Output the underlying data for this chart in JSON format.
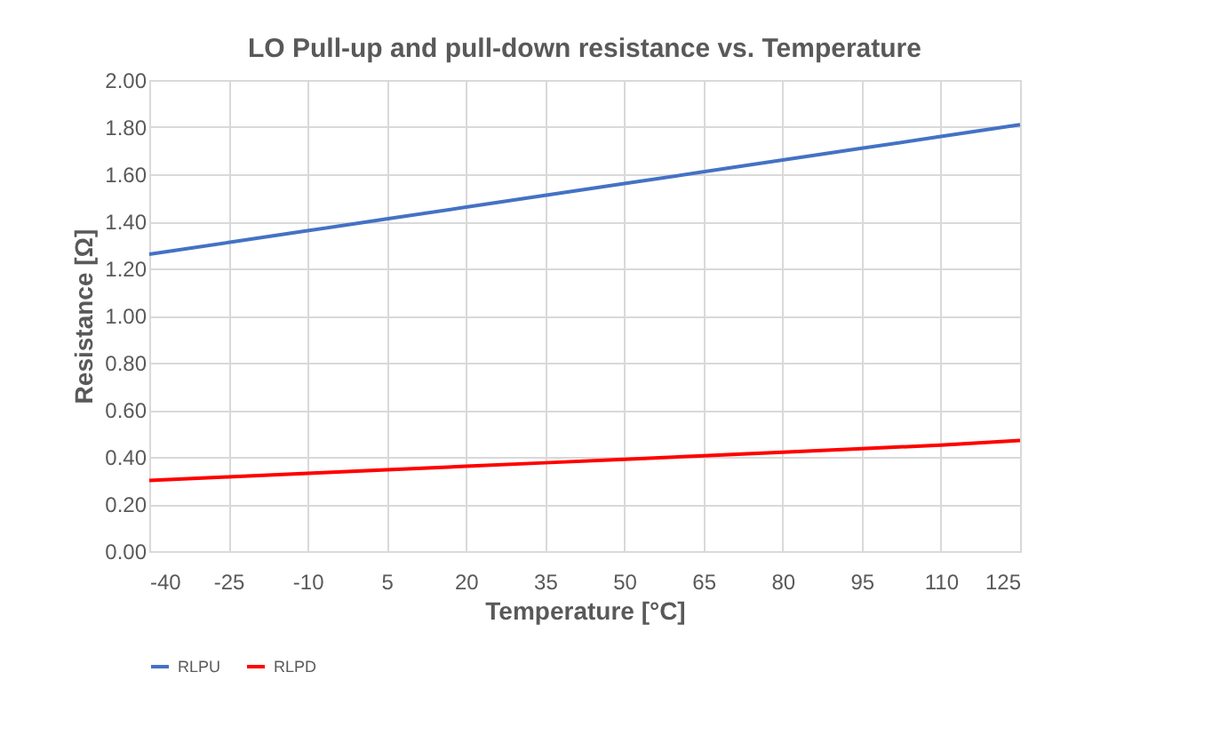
{
  "chart_data": {
    "type": "line",
    "title": "LO Pull-up and pull-down resistance vs. Temperature",
    "xlabel": "Temperature [°C]",
    "ylabel": "Resistance [Ω]",
    "x": [
      -40,
      -25,
      -10,
      5,
      20,
      35,
      50,
      65,
      80,
      95,
      110,
      125
    ],
    "series": [
      {
        "name": "RLPU",
        "color": "#4472c4",
        "values": [
          1.26,
          1.31,
          1.36,
          1.41,
          1.46,
          1.51,
          1.56,
          1.61,
          1.66,
          1.71,
          1.76,
          1.81
        ]
      },
      {
        "name": "RLPD",
        "color": "#ff0000",
        "values": [
          0.3,
          0.315,
          0.33,
          0.345,
          0.36,
          0.375,
          0.39,
          0.405,
          0.42,
          0.435,
          0.45,
          0.47
        ]
      }
    ],
    "xlim": [
      -40,
      125
    ],
    "xticks": [
      -40,
      -25,
      -10,
      5,
      20,
      35,
      50,
      65,
      80,
      95,
      110,
      125
    ],
    "ylim": [
      0,
      2
    ],
    "yticks": [
      {
        "value": 0,
        "label": "0.00"
      },
      {
        "value": 0.2,
        "label": "0.20"
      },
      {
        "value": 0.4,
        "label": "0.40"
      },
      {
        "value": 0.6,
        "label": "0.60"
      },
      {
        "value": 0.8,
        "label": "0.80"
      },
      {
        "value": 1.0,
        "label": "1.00"
      },
      {
        "value": 1.2,
        "label": "1.20"
      },
      {
        "value": 1.4,
        "label": "1.40"
      },
      {
        "value": 1.6,
        "label": "1.60"
      },
      {
        "value": 1.8,
        "label": "1.80"
      },
      {
        "value": 2.0,
        "label": "2.00"
      }
    ],
    "grid": true,
    "legend": "bottom",
    "marker": "none",
    "line_style": "solid"
  }
}
